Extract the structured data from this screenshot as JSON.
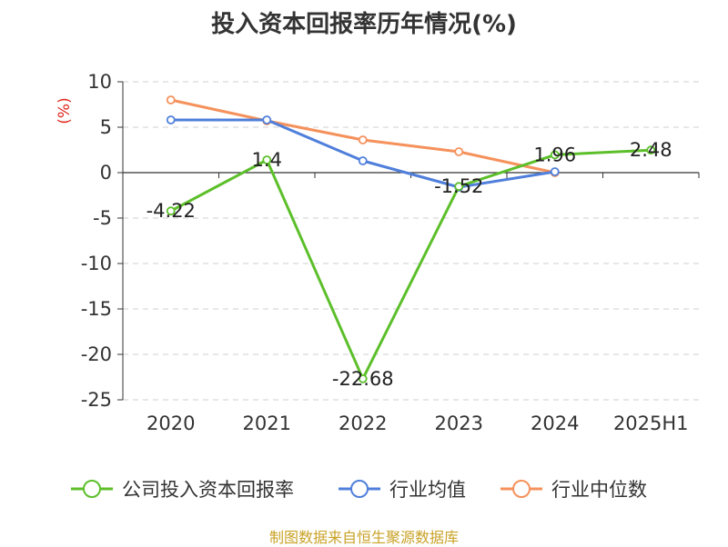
{
  "chart_data": {
    "type": "line",
    "title": "投入资本回报率历年情况(%)",
    "ylabel": "(%)",
    "categories": [
      "2020",
      "2021",
      "2022",
      "2023",
      "2024",
      "2025H1"
    ],
    "ylim": [
      -25,
      10
    ],
    "yticks": [
      10,
      5,
      0,
      -5,
      -10,
      -15,
      -20,
      -25
    ],
    "grid": true,
    "legend_position": "bottom",
    "series": [
      {
        "name": "公司投入资本回报率",
        "color": "#5cbf2a",
        "values": [
          -4.22,
          1.4,
          -22.68,
          -1.52,
          1.96,
          2.48
        ],
        "labels": [
          "-4.22",
          "1.4",
          "-22.68",
          "-1.52",
          "1.96",
          "2.48"
        ]
      },
      {
        "name": "行业均值",
        "color": "#4f7fdb",
        "values": [
          5.8,
          5.8,
          1.3,
          -1.6,
          0.1,
          null
        ]
      },
      {
        "name": "行业中位数",
        "color": "#f5915b",
        "values": [
          8.0,
          5.7,
          3.6,
          2.3,
          0.0,
          null
        ]
      }
    ]
  },
  "source": "制图数据来自恒生聚源数据库"
}
